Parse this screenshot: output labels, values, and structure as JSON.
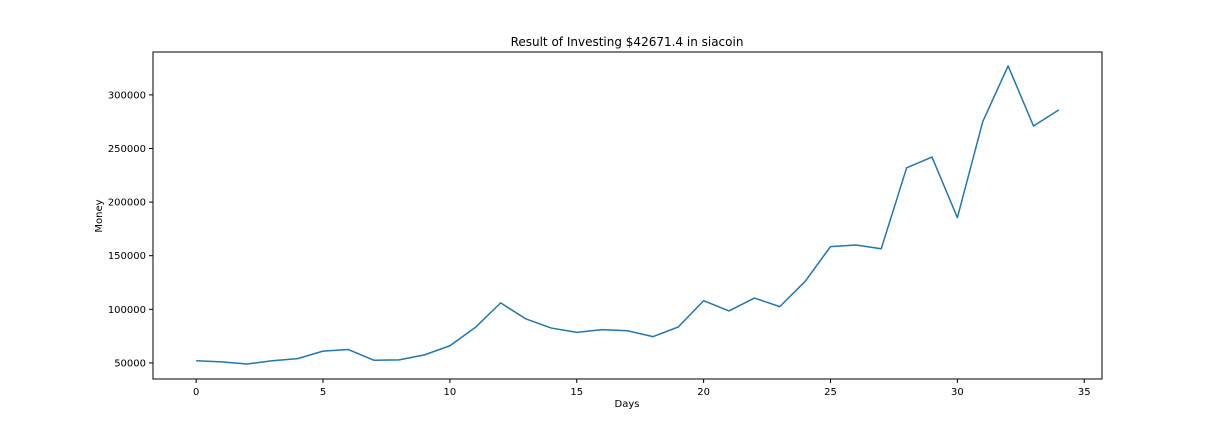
{
  "chart_data": {
    "type": "line",
    "title": "Result of Investing $42671.4 in siacoin",
    "xlabel": "Days",
    "ylabel": "Money",
    "xlim": [
      -1.7,
      35.7
    ],
    "ylim": [
      35000,
      340000
    ],
    "xticks": [
      0,
      5,
      10,
      15,
      20,
      25,
      30,
      35
    ],
    "yticks": [
      50000,
      100000,
      150000,
      200000,
      250000,
      300000
    ],
    "grid": false,
    "line_color": "#1f77b4",
    "series": [
      {
        "x": [
          0,
          1,
          2,
          3,
          4,
          5,
          6,
          7,
          8,
          9,
          10,
          11,
          12,
          13,
          14,
          15,
          16,
          17,
          18,
          19,
          20,
          21,
          22,
          23,
          24,
          25,
          26,
          27,
          28,
          29,
          30,
          31,
          32,
          33,
          34
        ],
        "values": [
          52000,
          51000,
          49000,
          52000,
          54000,
          61000,
          62500,
          52500,
          52800,
          57500,
          66000,
          83000,
          106000,
          91000,
          82500,
          78500,
          81000,
          80000,
          74500,
          83500,
          108000,
          98500,
          110500,
          102500,
          126000,
          158500,
          160000,
          156500,
          232000,
          242000,
          185500,
          275000,
          327000,
          271000,
          286000
        ]
      }
    ]
  }
}
